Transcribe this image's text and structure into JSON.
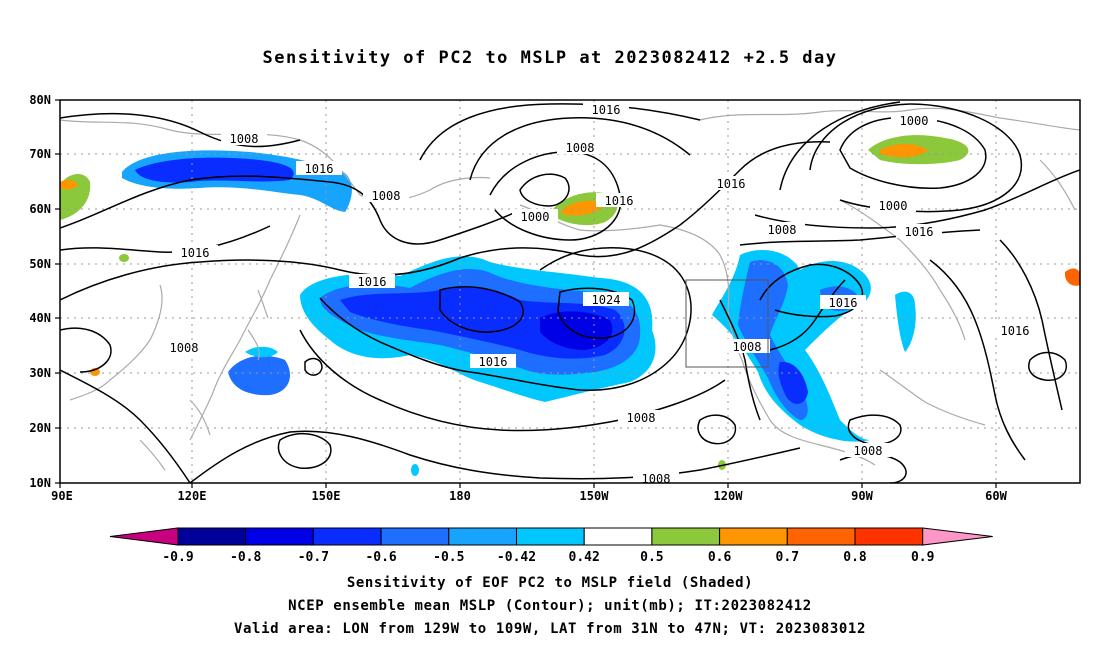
{
  "title": "Sensitivity of PC2 to MSLP at 2023082412 +2.5 day",
  "map": {
    "lat_ticks": [
      "80N",
      "70N",
      "60N",
      "50N",
      "40N",
      "30N",
      "20N",
      "10N"
    ],
    "lon_ticks": [
      "90E",
      "120E",
      "150E",
      "180",
      "150W",
      "120W",
      "90W",
      "60W"
    ],
    "contour_labels": [
      "1016",
      "1008",
      "1008",
      "1016",
      "1000",
      "1016",
      "1000",
      "1008",
      "1016",
      "1008",
      "1000",
      "1008",
      "1016",
      "1016",
      "1024",
      "1016",
      "1016",
      "1008",
      "1008",
      "1016",
      "1008",
      "1016",
      "1008"
    ],
    "valid_box_label": "Valid area: 129W-109W, 31N-47N"
  },
  "colorbar": {
    "labels": [
      "-0.9",
      "-0.8",
      "-0.7",
      "-0.6",
      "-0.5",
      "-0.42",
      "0.42",
      "0.5",
      "0.6",
      "0.7",
      "0.8",
      "0.9"
    ],
    "colors": [
      "#c80080",
      "#00009a",
      "#0000e6",
      "#0a2dff",
      "#1e6eff",
      "#16a4ff",
      "#00c8ff",
      "#ffffff",
      "#8cc83c",
      "#ff9600",
      "#ff6400",
      "#ff3200",
      "#ff0000",
      "#ff96c8"
    ]
  },
  "footer": {
    "line1": "Sensitivity of EOF PC2 to MSLP field (Shaded)",
    "line2": "NCEP ensemble mean MSLP (Contour); unit(mb); IT:2023082412",
    "line3": "Valid area: LON from 129W to 109W, LAT from 31N to 47N; VT: 2023083012"
  }
}
